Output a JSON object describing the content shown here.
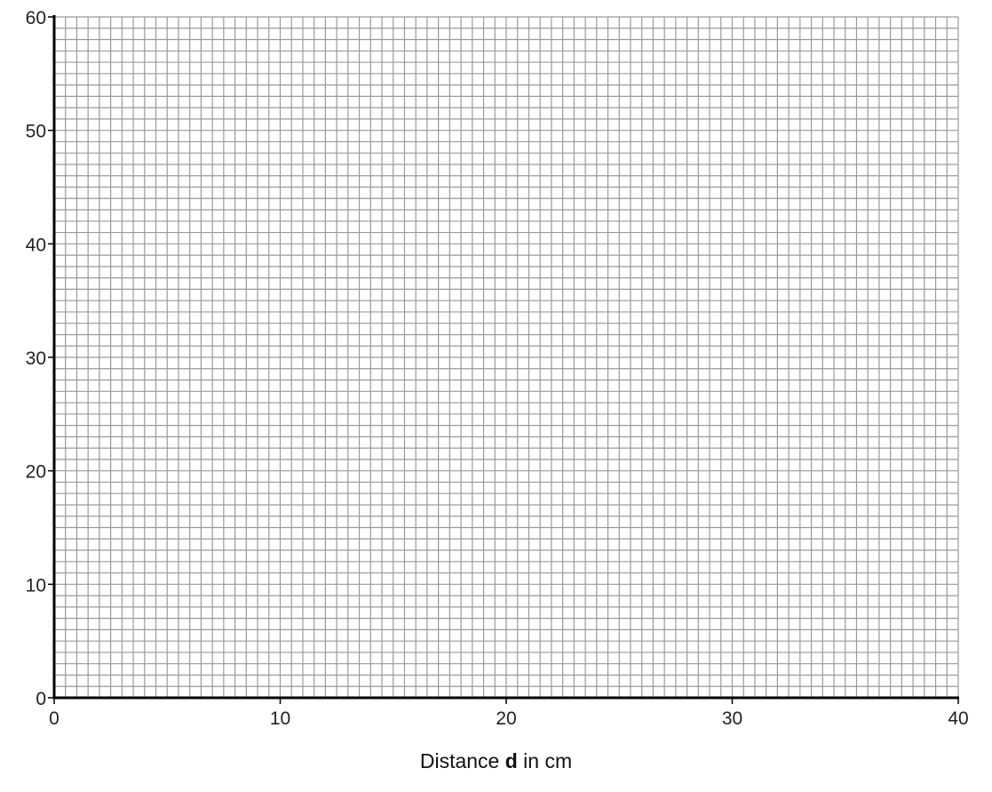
{
  "chart_data": {
    "type": "scatter",
    "title": "",
    "xlabel": {
      "prefix": "Distance ",
      "variable": "d",
      "suffix": " in cm"
    },
    "ylabel": "",
    "xlim": [
      0,
      40
    ],
    "ylim": [
      0,
      60
    ],
    "x_ticks": [
      0,
      10,
      20,
      30,
      40
    ],
    "y_ticks": [
      0,
      10,
      20,
      30,
      40,
      50,
      60
    ],
    "minor_x_step": 0.5,
    "minor_y_step": 1,
    "grid": true,
    "series": []
  },
  "colors": {
    "grid": "#9a9a9a",
    "axis": "#000000",
    "text": "#222222"
  }
}
